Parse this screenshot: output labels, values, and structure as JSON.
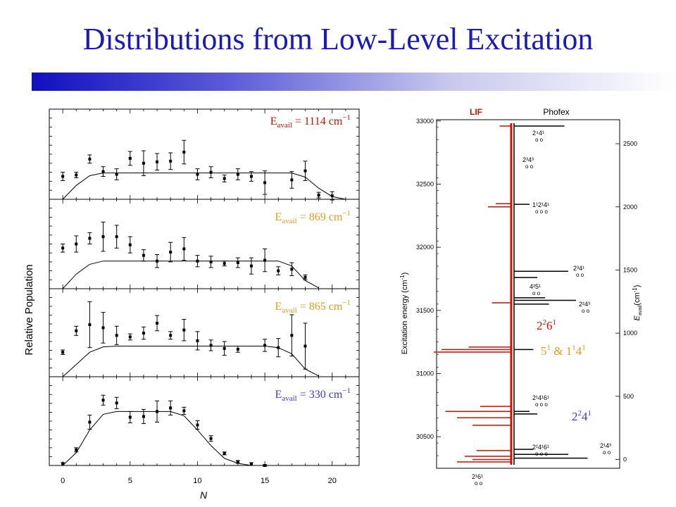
{
  "title": "Distributions from Low-Level Excitation",
  "colors": {
    "title": "#1a1ab4",
    "red": "#cc1100",
    "orange": "#e69a1e",
    "blue": "#3a3ad0",
    "black": "#000000"
  },
  "chart_data": [
    {
      "type": "scatter",
      "ylabel": "Relative Population",
      "xlabel": "N",
      "x_ticks": [
        "0",
        "5",
        "10",
        "15",
        "20"
      ],
      "xlim": [
        -1,
        22
      ],
      "panels": [
        {
          "label_main": "E",
          "label_sub": "avail",
          "label_rest": " = 1114 cm",
          "label_sup": "−1",
          "color": "#cc1100",
          "ylim": [
            0,
            1.3
          ],
          "points": [
            [
              0,
              0.33,
              0.06
            ],
            [
              1,
              0.35,
              0.04
            ],
            [
              2,
              0.58,
              0.06
            ],
            [
              3,
              0.4,
              0.07
            ],
            [
              4,
              0.36,
              0.08
            ],
            [
              5,
              0.59,
              0.1
            ],
            [
              6,
              0.52,
              0.18
            ],
            [
              7,
              0.54,
              0.12
            ],
            [
              8,
              0.55,
              0.12
            ],
            [
              9,
              0.68,
              0.17
            ],
            [
              10,
              0.36,
              0.08
            ],
            [
              11,
              0.39,
              0.08
            ],
            [
              12,
              0.3,
              0.05
            ],
            [
              13,
              0.36,
              0.08
            ],
            [
              14,
              0.33,
              0.07
            ],
            [
              15,
              0.24,
              0.17
            ],
            [
              17,
              0.28,
              0.12
            ],
            [
              18,
              0.41,
              0.14
            ],
            [
              19,
              0.06,
              0.04
            ],
            [
              20,
              0.05,
              0.06
            ]
          ],
          "fit": [
            [
              0,
              0.0
            ],
            [
              1,
              0.2
            ],
            [
              2,
              0.34
            ],
            [
              3,
              0.38
            ],
            [
              4,
              0.38
            ],
            [
              5,
              0.38
            ],
            [
              6,
              0.38
            ],
            [
              7,
              0.38
            ],
            [
              8,
              0.38
            ],
            [
              9,
              0.38
            ],
            [
              10,
              0.38
            ],
            [
              11,
              0.38
            ],
            [
              12,
              0.38
            ],
            [
              13,
              0.38
            ],
            [
              14,
              0.38
            ],
            [
              15,
              0.38
            ],
            [
              16,
              0.38
            ],
            [
              17,
              0.38
            ],
            [
              18,
              0.32
            ],
            [
              19,
              0.16
            ],
            [
              20,
              0.04
            ],
            [
              21,
              0.0
            ]
          ]
        },
        {
          "label_main": "E",
          "label_sub": "avail",
          "label_rest": " = 869 cm",
          "label_sup": "−1",
          "color": "#e69a1e",
          "ylim": [
            0,
            1.1
          ],
          "points": [
            [
              0,
              0.5,
              0.05
            ],
            [
              1,
              0.55,
              0.1
            ],
            [
              2,
              0.62,
              0.07
            ],
            [
              3,
              0.64,
              0.18
            ],
            [
              4,
              0.64,
              0.14
            ],
            [
              5,
              0.54,
              0.1
            ],
            [
              6,
              0.41,
              0.07
            ],
            [
              7,
              0.34,
              0.08
            ],
            [
              8,
              0.45,
              0.12
            ],
            [
              9,
              0.49,
              0.14
            ],
            [
              10,
              0.34,
              0.07
            ],
            [
              11,
              0.33,
              0.07
            ],
            [
              12,
              0.31,
              0.03
            ],
            [
              13,
              0.32,
              0.06
            ],
            [
              14,
              0.28,
              0.1
            ],
            [
              15,
              0.35,
              0.14
            ],
            [
              16,
              0.22,
              0.05
            ],
            [
              17,
              0.24,
              0.08
            ],
            [
              18,
              0.14,
              0.03
            ]
          ],
          "fit": [
            [
              0,
              0.0
            ],
            [
              1,
              0.18
            ],
            [
              2,
              0.3
            ],
            [
              3,
              0.34
            ],
            [
              4,
              0.34
            ],
            [
              5,
              0.34
            ],
            [
              6,
              0.34
            ],
            [
              7,
              0.34
            ],
            [
              8,
              0.34
            ],
            [
              9,
              0.34
            ],
            [
              10,
              0.34
            ],
            [
              11,
              0.34
            ],
            [
              12,
              0.34
            ],
            [
              13,
              0.34
            ],
            [
              14,
              0.34
            ],
            [
              15,
              0.34
            ],
            [
              16,
              0.34
            ],
            [
              17,
              0.28
            ],
            [
              18,
              0.1
            ],
            [
              19,
              0.01
            ]
          ]
        },
        {
          "label_main": "E",
          "label_sub": "avail",
          "label_rest": " = 865 cm",
          "label_sup": "−1",
          "color": "#e69a1e",
          "ylim": [
            0,
            1.15
          ],
          "points": [
            [
              0,
              0.32,
              0.03
            ],
            [
              1,
              0.6,
              0.06
            ],
            [
              2,
              0.68,
              0.3
            ],
            [
              3,
              0.64,
              0.2
            ],
            [
              4,
              0.54,
              0.12
            ],
            [
              5,
              0.52,
              0.04
            ],
            [
              6,
              0.57,
              0.08
            ],
            [
              7,
              0.7,
              0.1
            ],
            [
              8,
              0.54,
              0.05
            ],
            [
              9,
              0.61,
              0.14
            ],
            [
              10,
              0.47,
              0.12
            ],
            [
              11,
              0.41,
              0.07
            ],
            [
              12,
              0.37,
              0.09
            ],
            [
              13,
              0.36,
              0.04
            ],
            [
              15,
              0.41,
              0.08
            ],
            [
              16,
              0.38,
              0.12
            ],
            [
              17,
              0.54,
              0.27
            ],
            [
              18,
              0.4,
              0.3
            ]
          ],
          "fit": [
            [
              0,
              0.0
            ],
            [
              1,
              0.16
            ],
            [
              2,
              0.32
            ],
            [
              3,
              0.39
            ],
            [
              4,
              0.4
            ],
            [
              5,
              0.4
            ],
            [
              6,
              0.4
            ],
            [
              7,
              0.4
            ],
            [
              8,
              0.4
            ],
            [
              9,
              0.4
            ],
            [
              10,
              0.4
            ],
            [
              11,
              0.4
            ],
            [
              12,
              0.4
            ],
            [
              13,
              0.4
            ],
            [
              14,
              0.4
            ],
            [
              15,
              0.4
            ],
            [
              16,
              0.38
            ],
            [
              17,
              0.3
            ],
            [
              18,
              0.1
            ],
            [
              19,
              0.01
            ]
          ]
        },
        {
          "label_main": "E",
          "label_sub": "avail",
          "label_rest": " = 330 cm",
          "label_sup": "−1",
          "color": "#3a3ad0",
          "ylim": [
            0,
            1.25
          ],
          "points": [
            [
              0,
              0.02,
              0.02
            ],
            [
              1,
              0.22,
              0.03
            ],
            [
              2,
              0.61,
              0.1
            ],
            [
              3,
              0.92,
              0.07
            ],
            [
              4,
              0.88,
              0.08
            ],
            [
              5,
              0.68,
              0.08
            ],
            [
              6,
              0.69,
              0.1
            ],
            [
              7,
              0.76,
              0.15
            ],
            [
              8,
              0.81,
              0.1
            ],
            [
              9,
              0.77,
              0.05
            ],
            [
              10,
              0.57,
              0.06
            ],
            [
              11,
              0.38,
              0.04
            ],
            [
              12,
              0.17,
              0.02
            ],
            [
              13,
              0.05,
              0.02
            ],
            [
              14,
              0.02,
              0.02
            ],
            [
              15,
              0.0,
              0.01
            ]
          ],
          "fit": [
            [
              0,
              0.0
            ],
            [
              1,
              0.18
            ],
            [
              2,
              0.5
            ],
            [
              3,
              0.72
            ],
            [
              4,
              0.76
            ],
            [
              5,
              0.76
            ],
            [
              6,
              0.76
            ],
            [
              7,
              0.76
            ],
            [
              8,
              0.76
            ],
            [
              9,
              0.7
            ],
            [
              10,
              0.5
            ],
            [
              11,
              0.28
            ],
            [
              12,
              0.1
            ],
            [
              13,
              0.03
            ],
            [
              14,
              0.0
            ]
          ]
        }
      ]
    },
    {
      "type": "line",
      "legend": [
        "LIF",
        "Phofex"
      ],
      "legend_colors": [
        "#cc1100",
        "#000000"
      ],
      "ylabel_left": "Excitation energy (cm",
      "ylabel_left_sup": "-1",
      "ylabel_left_close": ")",
      "ylabel_right_main": "E",
      "ylabel_right_sub": "avail",
      "ylabel_right_rest": "(cm",
      "ylabel_right_sup": "-1",
      "ylabel_right_close": ")",
      "ylim_left": [
        30250,
        33010
      ],
      "left_ticks": [
        "30500",
        "31000",
        "31500",
        "32000",
        "32500",
        "33000"
      ],
      "right_ticks": [
        "0",
        "500",
        "1000",
        "1500",
        "2000",
        "2500"
      ],
      "right_tick_offset": 30320,
      "lif_baseline": 0.0,
      "phofex_baseline": 0.0,
      "lif_peaks": [
        [
          30300,
          -0.7
        ],
        [
          30320,
          -0.5
        ],
        [
          30345,
          -0.6
        ],
        [
          30390,
          -0.45
        ],
        [
          30590,
          -0.5
        ],
        [
          30650,
          -0.7
        ],
        [
          30700,
          -0.85
        ],
        [
          30740,
          -0.4
        ],
        [
          31170,
          -1.0
        ],
        [
          31190,
          -0.9
        ],
        [
          31210,
          -0.55
        ],
        [
          31560,
          -0.25
        ],
        [
          32320,
          -0.3
        ],
        [
          32345,
          -0.2
        ],
        [
          32960,
          -0.15
        ]
      ],
      "phofex_peaks": [
        [
          30330,
          0.95
        ],
        [
          30360,
          0.7
        ],
        [
          30400,
          0.25
        ],
        [
          30680,
          0.3
        ],
        [
          30700,
          0.2
        ],
        [
          31190,
          0.25
        ],
        [
          31550,
          0.45
        ],
        [
          31580,
          0.8
        ],
        [
          31600,
          0.4
        ],
        [
          31760,
          0.3
        ],
        [
          31810,
          0.7
        ],
        [
          32340,
          0.2
        ],
        [
          32960,
          0.65
        ]
      ],
      "assignments": [
        {
          "base": "2",
          "parts": [
            [
              "1",
              ""
            ],
            [
              "6",
              ""
            ],
            [
              "1",
              ""
            ]
          ],
          "low": "o o",
          "y": 30270,
          "side": "left"
        },
        {
          "base": "2",
          "parts": [
            [
              "1",
              ""
            ],
            [
              "4",
              ""
            ],
            [
              "3",
              ""
            ]
          ],
          "low": "o o",
          "y": 30380,
          "side": "right"
        },
        {
          "base": "2",
          "parts": [
            [
              "1",
              ""
            ],
            [
              "4",
              ""
            ],
            [
              "6",
              ""
            ],
            [
              "1",
              ""
            ]
          ],
          "low": "o o o",
          "y": 30380,
          "side": "mid"
        },
        {
          "base": "2",
          "parts": [
            [
              "1",
              ""
            ],
            [
              "4",
              ""
            ],
            [
              "6",
              ""
            ],
            [
              "1",
              ""
            ]
          ],
          "low": "o o o",
          "y": 30760,
          "side": "mid"
        },
        {
          "base": "2",
          "parts": [
            [
              "2",
              ""
            ],
            [
              "4",
              ""
            ],
            [
              "3",
              ""
            ]
          ],
          "low": "o o",
          "y": 31580,
          "side": "right"
        },
        {
          "base": "4",
          "parts": [
            [
              "2",
              ""
            ],
            [
              "5",
              ""
            ],
            [
              "1",
              ""
            ]
          ],
          "low": "o o",
          "y": 31690,
          "side": "mid"
        },
        {
          "base": "2",
          "parts": [
            [
              "3",
              ""
            ],
            [
              "4",
              ""
            ],
            [
              "1",
              ""
            ]
          ],
          "low": "o o",
          "y": 31810,
          "side": "right"
        },
        {
          "base": "1",
          "parts": [
            [
              "1",
              ""
            ],
            [
              "2",
              ""
            ],
            [
              "1",
              ""
            ],
            [
              "4",
              ""
            ],
            [
              "1",
              ""
            ]
          ],
          "low": "o o o",
          "y": 32330,
          "side": "mid"
        },
        {
          "base": "2",
          "parts": [
            [
              "3",
              ""
            ],
            [
              "4",
              ""
            ],
            [
              "3",
              ""
            ]
          ],
          "low": "o o",
          "y": 32700,
          "side": "mid"
        },
        {
          "base": "2",
          "parts": [
            [
              "4",
              ""
            ],
            [
              "4",
              ""
            ],
            [
              "1",
              ""
            ]
          ],
          "low": "o o",
          "y": 32930,
          "side": "right"
        }
      ],
      "assign_text": {
        "a1": "2¹6¹",
        "a2": "2¹4³",
        "a3": "2¹4¹6¹",
        "a4": "2¹4¹6¹",
        "a5": "2²4³",
        "a6": "4²5¹",
        "a7": "2³4¹",
        "a8": "1¹2¹4¹",
        "a9": "2³4³",
        "a10": "2⁴4¹"
      },
      "overlays": [
        {
          "text": "2",
          "sup1": "2",
          "mid": "6",
          "sup2": "1",
          "color": "#cc1100",
          "y": 31400
        },
        {
          "text": "5",
          "sup1": "1",
          "mid": " & 1",
          "sup2": "1",
          "tail": "4",
          "sup3": "1",
          "color": "#e69a1e",
          "y": 31170
        },
        {
          "text": "2",
          "sup1": "2",
          "mid": "4",
          "sup2": "1",
          "color": "#3a3ad0",
          "y": 30620
        }
      ]
    }
  ]
}
